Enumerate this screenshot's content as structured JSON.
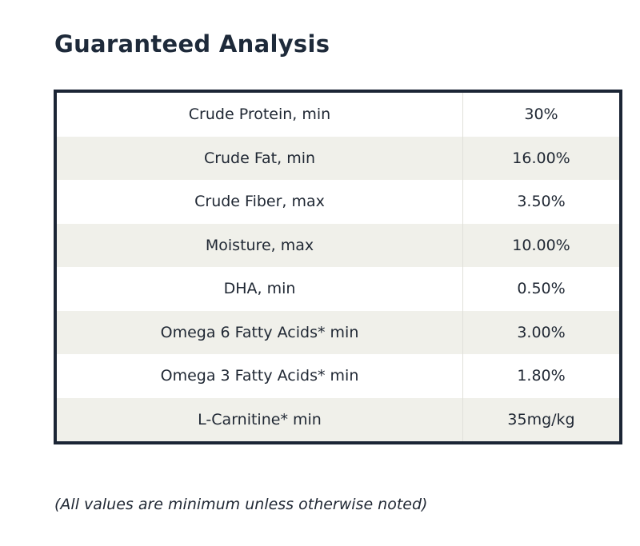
{
  "title": "Guaranteed Analysis",
  "rows": [
    {
      "name": "Crude Protein, min",
      "value": "30%"
    },
    {
      "name": "Crude Fat, min",
      "value": "16.00%"
    },
    {
      "name": "Crude Fiber, max",
      "value": "3.50%"
    },
    {
      "name": "Moisture, max",
      "value": "10.00%"
    },
    {
      "name": "DHA, min",
      "value": "0.50%"
    },
    {
      "name": "Omega 6 Fatty Acids* min",
      "value": "3.00%"
    },
    {
      "name": "Omega 3 Fatty Acids* min",
      "value": "1.80%"
    },
    {
      "name": "L-Carnitine* min",
      "value": "35mg/kg"
    }
  ],
  "note": "(All values are minimum unless otherwise noted)",
  "colors": {
    "border": "#1b2535",
    "stripe": "#f0f0ea",
    "text": "#1f2733"
  }
}
